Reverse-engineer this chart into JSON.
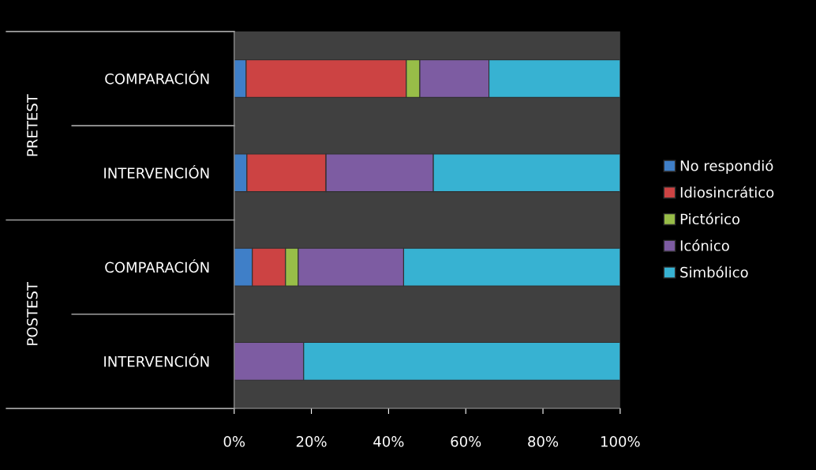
{
  "chart_data": {
    "type": "bar",
    "orientation": "horizontal",
    "stacked": true,
    "categories": [
      "COMPARACIÓN",
      "INTERVENCIÓN",
      "COMPARACIÓN",
      "INTERVENCIÓN"
    ],
    "series": [
      {
        "name": "No respondió",
        "color": "#3f7fc8",
        "values": [
          3.1,
          3.3,
          4.7,
          0
        ]
      },
      {
        "name": "Idiosincrático",
        "color": "#cc4343",
        "values": [
          41.5,
          20.5,
          8.6,
          0
        ]
      },
      {
        "name": "Pictórico",
        "color": "#98bd48",
        "values": [
          3.5,
          0,
          3.3,
          0
        ]
      },
      {
        "name": "Icónico",
        "color": "#7d5ca2",
        "values": [
          17.9,
          27.8,
          27.3,
          18
        ]
      },
      {
        "name": "Simbólico",
        "color": "#37b2d2",
        "values": [
          34,
          48.4,
          56.1,
          82
        ]
      }
    ],
    "annotations": [
      "PRETEST",
      "POSTEST"
    ],
    "xlim": [
      0,
      100
    ],
    "xticks": [
      {
        "value": 0,
        "label": "0%"
      },
      {
        "value": 20,
        "label": "20%"
      },
      {
        "value": 40,
        "label": "40%"
      },
      {
        "value": 60,
        "label": "60%"
      },
      {
        "value": 80,
        "label": "80%"
      },
      {
        "value": 100,
        "label": "100%"
      }
    ],
    "grid": false,
    "legend": "right"
  }
}
